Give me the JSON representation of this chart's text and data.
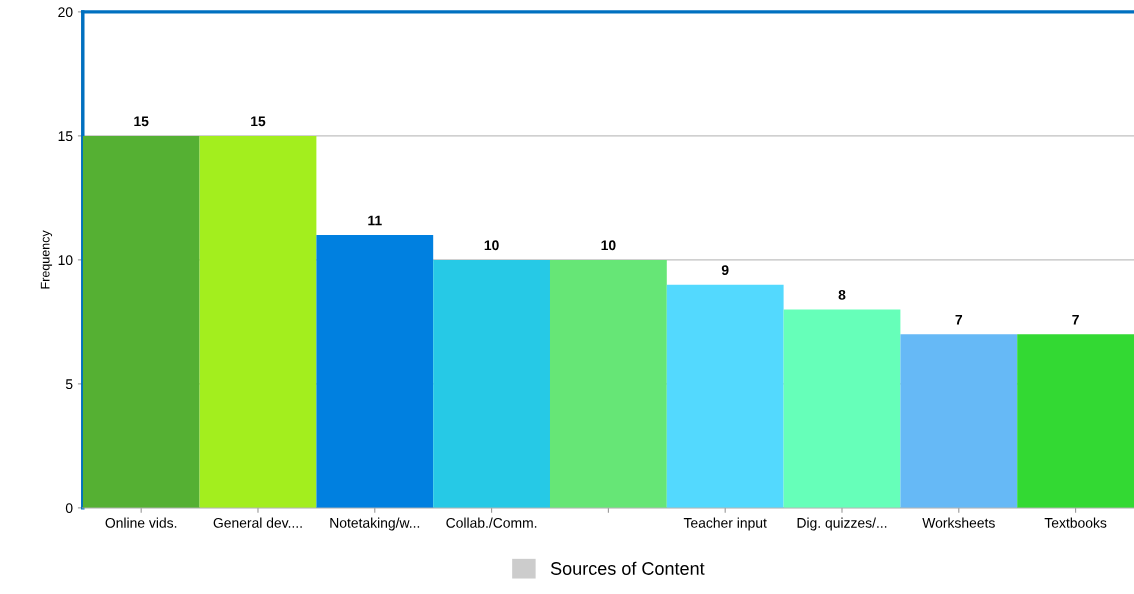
{
  "chart_data": {
    "type": "bar",
    "ylabel": "Frequency",
    "categories": [
      "Online vids.",
      "General dev....",
      "Notetaking/w...",
      "Collab./Comm.",
      null,
      "Teacher input",
      "Dig. quizzes/...",
      "Worksheets",
      "Textbooks"
    ],
    "series": [
      {
        "name": "Sources of Content",
        "color": "#cccccc",
        "values": [
          15,
          15,
          11,
          10,
          10,
          9,
          8,
          7,
          7
        ],
        "colors": [
          "#55b033",
          "#a3ee1e",
          "#0080e0",
          "#26c9e6",
          "#66e676",
          "#53d9fe",
          "#66ffb9",
          "#66b9f6",
          "#33d933"
        ]
      }
    ],
    "ylim": [
      0,
      20
    ],
    "yticks": [
      0,
      5,
      10,
      15,
      20
    ],
    "grid": "y",
    "legend": "bottom",
    "data_labels": true
  }
}
